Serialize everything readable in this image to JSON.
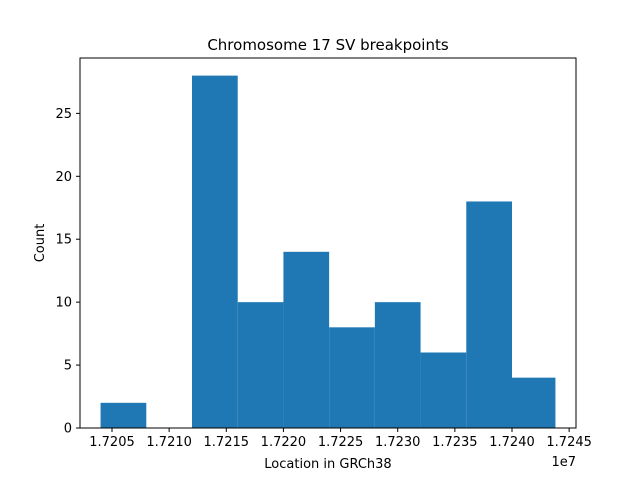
{
  "chart_data": {
    "type": "bar",
    "title": "Chromosome 17 SV breakpoints",
    "xlabel": "Location in GRCh38",
    "ylabel": "Count",
    "x_offset_label": "1e7",
    "bin_edges": [
      1.7204,
      1.7208,
      1.7212,
      1.7216,
      1.722,
      1.7224,
      1.7228,
      1.7232,
      1.7236,
      1.724,
      1.72438
    ],
    "values": [
      2,
      0,
      28,
      10,
      14,
      8,
      10,
      6,
      18,
      4
    ],
    "xlim": [
      1.72022,
      1.72456
    ],
    "ylim": [
      0,
      29.4
    ],
    "xticks": [
      1.7205,
      1.721,
      1.7215,
      1.722,
      1.7225,
      1.723,
      1.7235,
      1.724,
      1.7245
    ],
    "xtick_labels": [
      "1.7205",
      "1.7210",
      "1.7215",
      "1.7220",
      "1.7225",
      "1.7230",
      "1.7235",
      "1.7240",
      "1.7245"
    ],
    "yticks": [
      0,
      5,
      10,
      15,
      20,
      25
    ],
    "ytick_labels": [
      "0",
      "5",
      "10",
      "15",
      "20",
      "25"
    ],
    "bar_color": "#1f77b4",
    "grid": false,
    "legend": "none"
  }
}
